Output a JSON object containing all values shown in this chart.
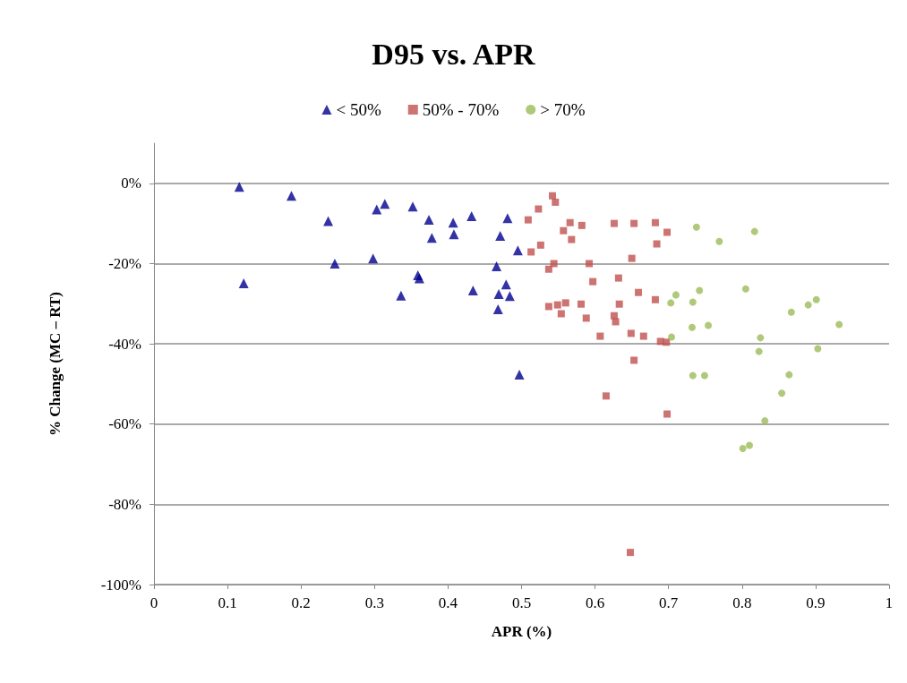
{
  "chart_data": {
    "type": "scatter",
    "title": "D95 vs. APR",
    "xlabel": "APR (%)",
    "ylabel": "% Change (MC – RT)",
    "xlim": [
      0,
      1
    ],
    "xticks": [
      0,
      0.1,
      0.2,
      0.3,
      0.4,
      0.5,
      0.6,
      0.7,
      0.8,
      0.9,
      1
    ],
    "ylim": [
      -100,
      10
    ],
    "yticks": [
      {
        "value": -100,
        "label": "-100%"
      },
      {
        "value": -80,
        "label": "-80%"
      },
      {
        "value": -60,
        "label": "-60%"
      },
      {
        "value": -40,
        "label": "-40%"
      },
      {
        "value": -20,
        "label": "-20%"
      },
      {
        "value": 0,
        "label": "0%"
      }
    ],
    "grid": "y",
    "legend": "top",
    "series": [
      {
        "name": "< 50%",
        "color": "#000090",
        "marker": "triangle",
        "x": [
          0.116,
          0.187,
          0.237,
          0.303,
          0.314,
          0.352,
          0.374,
          0.378,
          0.407,
          0.408,
          0.432,
          0.481,
          0.471,
          0.495,
          0.466,
          0.122,
          0.246,
          0.298,
          0.359,
          0.361,
          0.336,
          0.434,
          0.479,
          0.469,
          0.484,
          0.468,
          0.497
        ],
        "values": [
          -0.9,
          -3.1,
          -9.4,
          -6.5,
          -5.1,
          -5.8,
          -9.1,
          -13.6,
          -9.8,
          -12.7,
          -8.2,
          -8.7,
          -13.1,
          -16.7,
          -20.7,
          -24.9,
          -20,
          -18.7,
          -22.9,
          -23.7,
          -28,
          -26.7,
          -25.2,
          -27.6,
          -28.1,
          -31.4,
          -47.7
        ]
      },
      {
        "name": "50% - 70%",
        "color": "#c0504d",
        "marker": "square",
        "x": [
          0.542,
          0.546,
          0.523,
          0.509,
          0.566,
          0.557,
          0.582,
          0.568,
          0.626,
          0.653,
          0.682,
          0.698,
          0.684,
          0.526,
          0.513,
          0.544,
          0.537,
          0.592,
          0.65,
          0.597,
          0.632,
          0.659,
          0.682,
          0.537,
          0.549,
          0.56,
          0.554,
          0.581,
          0.588,
          0.633,
          0.626,
          0.628,
          0.607,
          0.649,
          0.666,
          0.689,
          0.697,
          0.653,
          0.615,
          0.698,
          0.648
        ],
        "values": [
          -3.1,
          -4.7,
          -6.4,
          -9.1,
          -9.8,
          -11.8,
          -10.5,
          -14,
          -10,
          -10,
          -9.8,
          -12.2,
          -15.1,
          -15.4,
          -17.1,
          -20,
          -21.4,
          -20,
          -18.7,
          -24.5,
          -23.6,
          -27.2,
          -29,
          -30.7,
          -30.3,
          -29.8,
          -32.5,
          -30.1,
          -33.6,
          -30.1,
          -33,
          -34.5,
          -38.1,
          -37.4,
          -38.1,
          -39.4,
          -39.6,
          -44.1,
          -53,
          -57.5,
          -92
        ]
      },
      {
        "name": "> 70%",
        "color": "#9bbb59",
        "marker": "circle",
        "x": [
          0.738,
          0.769,
          0.817,
          0.71,
          0.703,
          0.742,
          0.733,
          0.805,
          0.867,
          0.89,
          0.901,
          0.732,
          0.754,
          0.704,
          0.825,
          0.823,
          0.903,
          0.932,
          0.733,
          0.749,
          0.864,
          0.854,
          0.831,
          0.801,
          0.81
        ],
        "values": [
          -10.9,
          -14.5,
          -12,
          -27.8,
          -29.8,
          -26.7,
          -29.6,
          -26.3,
          -32.1,
          -30.3,
          -29,
          -35.9,
          -35.4,
          -38.3,
          -38.5,
          -41.9,
          -41.2,
          -35.2,
          -47.9,
          -47.9,
          -47.7,
          -52.3,
          -59.2,
          -66.1,
          -65.3
        ]
      }
    ]
  }
}
